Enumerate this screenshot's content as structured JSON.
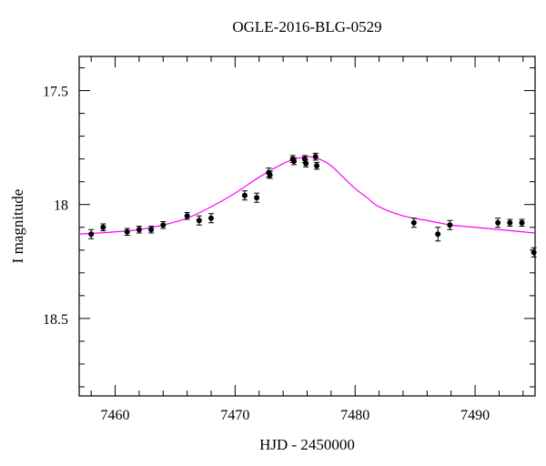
{
  "chart_data": {
    "type": "scatter",
    "title": "OGLE-2016-BLG-0529",
    "xlabel": "HJD - 2450000",
    "ylabel": "I magnitude",
    "xlim": [
      7457,
      7495
    ],
    "ylim": [
      18.84,
      17.35
    ],
    "y_inverted": true,
    "x_ticks": [
      7460,
      7470,
      7480,
      7490
    ],
    "x_tick_labels": [
      "7460",
      "7470",
      "7480",
      "7490"
    ],
    "y_ticks": [
      17.5,
      18,
      18.5
    ],
    "y_tick_labels": [
      "17.5",
      "18",
      "18.5"
    ],
    "grid": false,
    "series": [
      {
        "kind": "points",
        "color": "#000000",
        "points": [
          {
            "x": 7458.0,
            "y": 18.13,
            "err": 0.02
          },
          {
            "x": 7459.0,
            "y": 18.1,
            "err": 0.015
          },
          {
            "x": 7461.0,
            "y": 18.12,
            "err": 0.015
          },
          {
            "x": 7462.0,
            "y": 18.11,
            "err": 0.015
          },
          {
            "x": 7463.0,
            "y": 18.11,
            "err": 0.015
          },
          {
            "x": 7464.0,
            "y": 18.09,
            "err": 0.015
          },
          {
            "x": 7466.0,
            "y": 18.05,
            "err": 0.015
          },
          {
            "x": 7467.0,
            "y": 18.07,
            "err": 0.02
          },
          {
            "x": 7468.0,
            "y": 18.06,
            "err": 0.02
          },
          {
            "x": 7470.8,
            "y": 17.96,
            "err": 0.02
          },
          {
            "x": 7471.8,
            "y": 17.97,
            "err": 0.02
          },
          {
            "x": 7472.8,
            "y": 17.86,
            "err": 0.02
          },
          {
            "x": 7472.9,
            "y": 17.87,
            "err": 0.015
          },
          {
            "x": 7474.8,
            "y": 17.8,
            "err": 0.015
          },
          {
            "x": 7474.9,
            "y": 17.81,
            "err": 0.015
          },
          {
            "x": 7475.8,
            "y": 17.8,
            "err": 0.015
          },
          {
            "x": 7475.9,
            "y": 17.82,
            "err": 0.015
          },
          {
            "x": 7476.7,
            "y": 17.79,
            "err": 0.015
          },
          {
            "x": 7476.8,
            "y": 17.83,
            "err": 0.015
          },
          {
            "x": 7484.9,
            "y": 18.08,
            "err": 0.02
          },
          {
            "x": 7486.9,
            "y": 18.13,
            "err": 0.03
          },
          {
            "x": 7487.9,
            "y": 18.09,
            "err": 0.02
          },
          {
            "x": 7491.9,
            "y": 18.08,
            "err": 0.02
          },
          {
            "x": 7492.9,
            "y": 18.08,
            "err": 0.015
          },
          {
            "x": 7493.9,
            "y": 18.08,
            "err": 0.015
          },
          {
            "x": 7494.9,
            "y": 18.21,
            "err": 0.02
          }
        ]
      },
      {
        "kind": "model-curve",
        "color": "#ff00ff",
        "points": [
          [
            7457.0,
            18.13
          ],
          [
            7460.0,
            18.12
          ],
          [
            7462.0,
            18.11
          ],
          [
            7464.0,
            18.09
          ],
          [
            7466.0,
            18.06
          ],
          [
            7468.0,
            18.01
          ],
          [
            7470.0,
            17.95
          ],
          [
            7472.0,
            17.88
          ],
          [
            7474.0,
            17.82
          ],
          [
            7475.0,
            17.8
          ],
          [
            7476.0,
            17.79
          ],
          [
            7477.0,
            17.8
          ],
          [
            7478.0,
            17.83
          ],
          [
            7479.0,
            17.88
          ],
          [
            7480.0,
            17.93
          ],
          [
            7481.0,
            17.97
          ],
          [
            7482.0,
            18.01
          ],
          [
            7484.0,
            18.05
          ],
          [
            7486.0,
            18.07
          ],
          [
            7488.0,
            18.09
          ],
          [
            7490.0,
            18.1
          ],
          [
            7492.0,
            18.11
          ],
          [
            7494.0,
            18.12
          ],
          [
            7495.0,
            18.125
          ]
        ]
      }
    ]
  }
}
